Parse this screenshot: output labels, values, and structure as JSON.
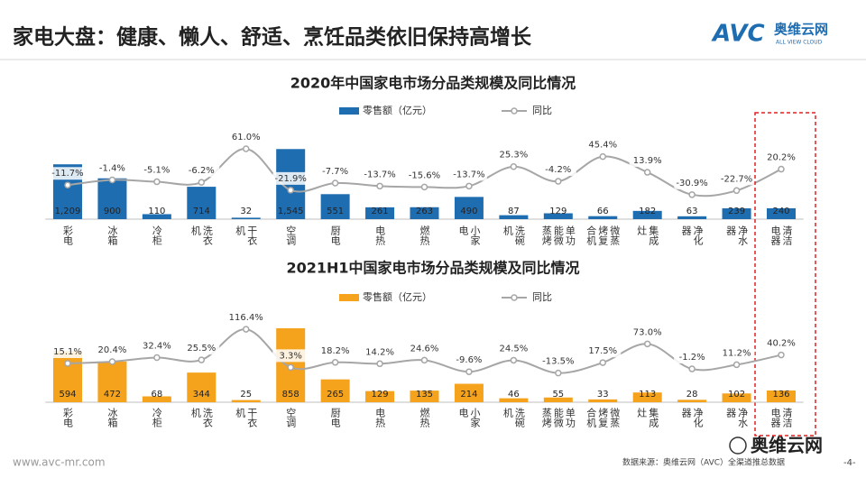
{
  "header": {
    "title": "家电大盘：健康、懒人、舒适、烹饪品类依旧保持高增长",
    "logo_main": "AVC",
    "logo_cn": "奥维云网",
    "logo_sub": "ALL VIEW CLOUD"
  },
  "chart_data": [
    {
      "type": "bar",
      "title": "2020年中国家电市场分品类规模及同比情况",
      "categories": [
        "彩电",
        "冰箱",
        "冷柜",
        "洗衣机",
        "干衣机",
        "空调",
        "厨电",
        "电热",
        "燃热",
        "小家电",
        "洗碗机",
        "单功能微蒸烤",
        "微蒸烤复合机",
        "集成灶",
        "净化器",
        "净水器",
        "清洁电器"
      ],
      "ylim": [
        0,
        1650
      ],
      "y2lim": [
        -80,
        70
      ],
      "series": [
        {
          "name": "零售额（亿元）",
          "color": "#1f6db1",
          "values": [
            1209,
            900,
            110,
            714,
            32,
            1545,
            551,
            261,
            263,
            490,
            87,
            129,
            66,
            182,
            63,
            239,
            240
          ],
          "value_labels": [
            "1,209",
            "900",
            "110",
            "714",
            "32",
            "1,545",
            "551",
            "261",
            "263",
            "490",
            "87",
            "129",
            "66",
            "182",
            "63",
            "239",
            "240"
          ]
        },
        {
          "name": "同比",
          "type": "line",
          "axis": "y2",
          "color": "#a6a6a6",
          "values": [
            -11.7,
            -1.4,
            -5.1,
            -6.2,
            61.0,
            -21.9,
            -7.7,
            -13.7,
            -15.6,
            -13.7,
            25.3,
            -4.2,
            45.4,
            13.9,
            -30.9,
            -22.7,
            20.2
          ],
          "value_labels": [
            "-11.7%",
            "-1.4%",
            "-5.1%",
            "-6.2%",
            "61.0%",
            "-21.9%",
            "-7.7%",
            "-13.7%",
            "-15.6%",
            "-13.7%",
            "25.3%",
            "-4.2%",
            "45.4%",
            "13.9%",
            "-30.9%",
            "-22.7%",
            "20.2%"
          ]
        }
      ]
    },
    {
      "type": "bar",
      "title": "2021H1中国家电市场分品类规模及同比情况",
      "categories": [
        "彩电",
        "冰箱",
        "冷柜",
        "洗衣机",
        "干衣机",
        "空调",
        "厨电",
        "电热",
        "燃热",
        "小家电",
        "洗碗机",
        "单功能微蒸烤",
        "微蒸烤复合机",
        "集成灶",
        "净化器",
        "净水器",
        "清洁电器"
      ],
      "ylim": [
        0,
        900
      ],
      "y2lim": [
        -100,
        130
      ],
      "series": [
        {
          "name": "零售额（亿元）",
          "color": "#f5a21c",
          "values": [
            594,
            472,
            68,
            344,
            25,
            858,
            265,
            129,
            135,
            214,
            46,
            55,
            33,
            113,
            28,
            102,
            136
          ]
        },
        {
          "name": "同比",
          "type": "line",
          "axis": "y2",
          "color": "#a6a6a6",
          "values": [
            15.1,
            20.4,
            32.4,
            25.5,
            116.4,
            3.3,
            18.2,
            14.2,
            24.6,
            -9.6,
            24.5,
            -13.5,
            17.5,
            73.0,
            -1.2,
            11.2,
            40.2
          ],
          "value_labels": [
            "15.1%",
            "20.4%",
            "32.4%",
            "25.5%",
            "116.4%",
            "3.3%",
            "18.2%",
            "14.2%",
            "24.6%",
            "-9.6%",
            "24.5%",
            "-13.5%",
            "17.5%",
            "73.0%",
            "-1.2%",
            "11.2%",
            "40.2%"
          ]
        }
      ]
    }
  ],
  "footer": {
    "url": "www.avc-mr.com",
    "source": "数据来源：奥维云网（AVC）全渠道推总数据",
    "page": "-4-",
    "watermark": "奥维云网"
  }
}
